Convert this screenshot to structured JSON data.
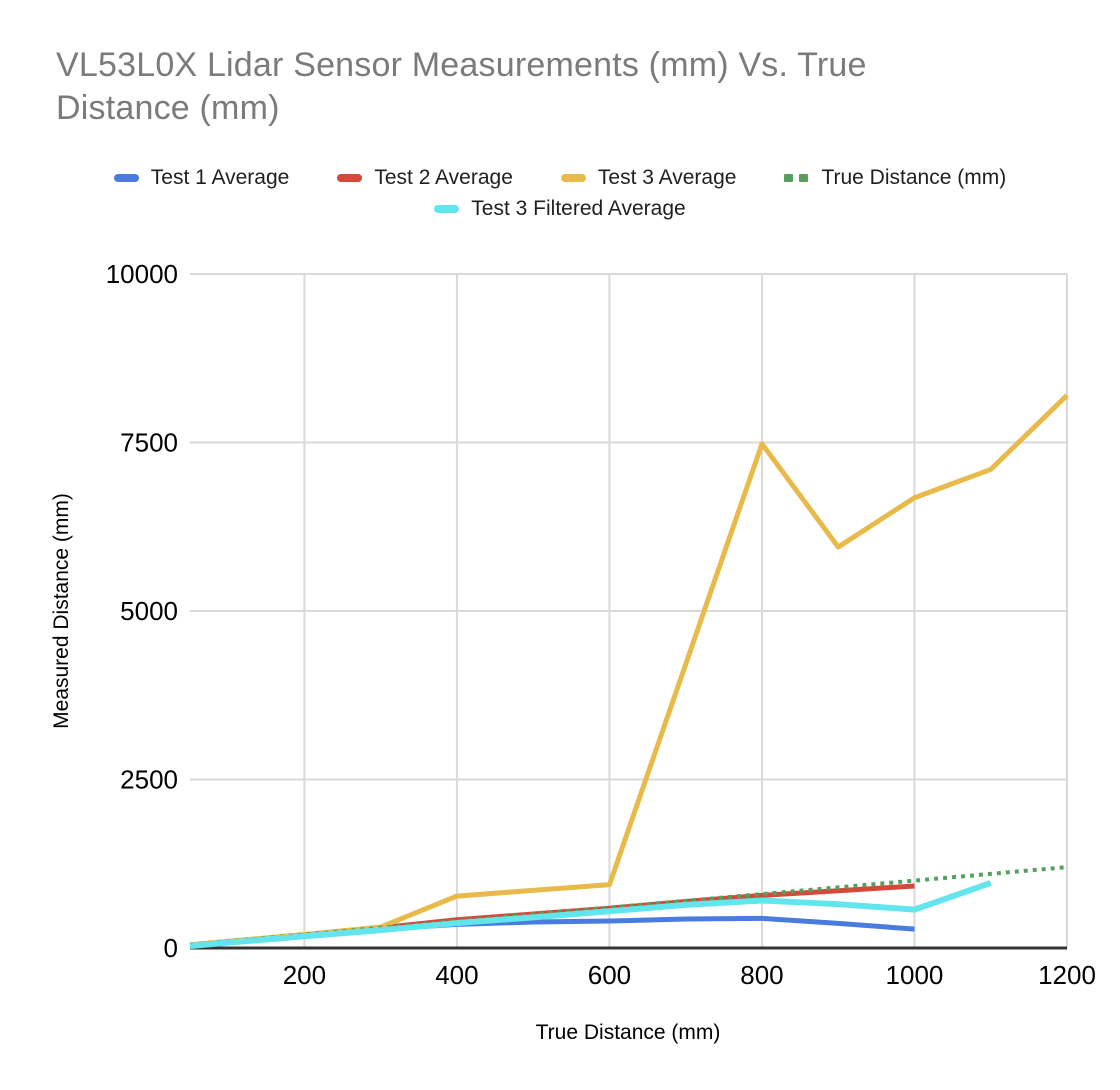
{
  "title": "VL53L0X Lidar Sensor Measurements (mm) Vs. True Distance (mm)",
  "chart_data": {
    "type": "line",
    "title": "VL53L0X Lidar Sensor Measurements (mm) Vs. True Distance (mm)",
    "xlabel": "True Distance (mm)",
    "ylabel": "Measured Distance (mm)",
    "xlim": [
      50,
      1200
    ],
    "ylim": [
      0,
      10000
    ],
    "x_ticks": [
      200,
      400,
      600,
      800,
      1000,
      1200
    ],
    "y_ticks": [
      0,
      2500,
      5000,
      7500,
      10000
    ],
    "grid": true,
    "legend_position": "top",
    "background_color": "#ffffff",
    "gridline_color": "#d9d9d9",
    "axis_line_color": "#333333",
    "title_color": "#7b7b7b",
    "series": [
      {
        "name": "Test 1 Average",
        "color": "#4a7ce0",
        "style": "solid",
        "points": [
          [
            50,
            35
          ],
          [
            100,
            90
          ],
          [
            200,
            190
          ],
          [
            300,
            280
          ],
          [
            400,
            350
          ],
          [
            500,
            385
          ],
          [
            600,
            400
          ],
          [
            700,
            430
          ],
          [
            800,
            440
          ],
          [
            900,
            365
          ],
          [
            1000,
            280
          ]
        ]
      },
      {
        "name": "Test 2 Average",
        "color": "#d6493a",
        "style": "solid",
        "points": [
          [
            50,
            45
          ],
          [
            100,
            95
          ],
          [
            200,
            195
          ],
          [
            300,
            300
          ],
          [
            400,
            420
          ],
          [
            500,
            505
          ],
          [
            600,
            590
          ],
          [
            700,
            690
          ],
          [
            800,
            780
          ],
          [
            900,
            850
          ],
          [
            1000,
            920
          ]
        ]
      },
      {
        "name": "Test 3 Average",
        "color": "#e8ba49",
        "style": "solid",
        "points": [
          [
            50,
            45
          ],
          [
            100,
            100
          ],
          [
            200,
            200
          ],
          [
            300,
            310
          ],
          [
            400,
            770
          ],
          [
            600,
            940
          ],
          [
            800,
            7480
          ],
          [
            900,
            5950
          ],
          [
            1000,
            6680
          ],
          [
            1100,
            7100
          ],
          [
            1200,
            8200
          ]
        ]
      },
      {
        "name": "True Distance (mm)",
        "color": "#55a05c",
        "style": "dotted",
        "points": [
          [
            50,
            50
          ],
          [
            100,
            100
          ],
          [
            200,
            200
          ],
          [
            300,
            300
          ],
          [
            400,
            400
          ],
          [
            500,
            500
          ],
          [
            600,
            600
          ],
          [
            700,
            700
          ],
          [
            800,
            800
          ],
          [
            900,
            900
          ],
          [
            1000,
            1000
          ],
          [
            1100,
            1100
          ],
          [
            1200,
            1200
          ]
        ]
      },
      {
        "name": "Test 3 Filtered Average",
        "color": "#62e5ec",
        "style": "solid",
        "points": [
          [
            50,
            30
          ],
          [
            100,
            80
          ],
          [
            200,
            175
          ],
          [
            300,
            265
          ],
          [
            400,
            370
          ],
          [
            500,
            455
          ],
          [
            600,
            545
          ],
          [
            700,
            640
          ],
          [
            800,
            705
          ],
          [
            900,
            650
          ],
          [
            1000,
            570
          ],
          [
            1100,
            965
          ]
        ]
      }
    ],
    "legend_rows": [
      [
        0,
        1,
        2,
        3
      ],
      [
        4
      ]
    ]
  }
}
